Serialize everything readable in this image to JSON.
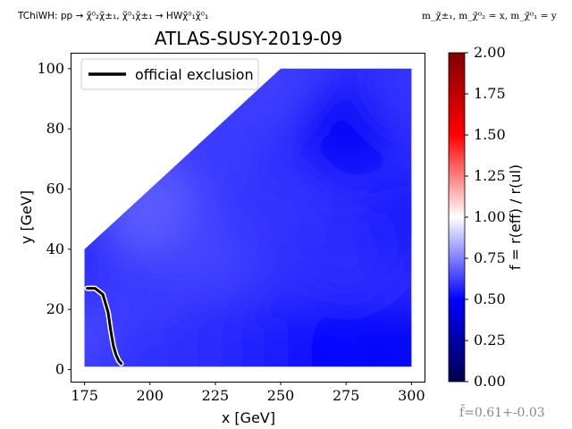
{
  "header": {
    "left_note": "TChiWH: pp → χ̃⁰₂χ̃±₁, χ̃⁰₁χ̃±₁ → HWχ̃⁰₁χ̃⁰₁",
    "right_note": "m_χ̃±₁, m_χ̃⁰₂ = x, m_χ̃⁰₁ = y"
  },
  "footer": {
    "mean_ratio": "f̄=0.61+-0.03"
  },
  "colors": {
    "exclusion_line": "#000000",
    "exclusion_halo": "#ffffff",
    "cmap_low": "#00004d",
    "cmap_mid_low": "#0000ff",
    "cmap_mid": "#ffffff",
    "cmap_mid_high": "#ff0000",
    "cmap_high": "#800000"
  },
  "chart_data": {
    "type": "heatmap",
    "title": "ATLAS-SUSY-2019-09",
    "xlabel": "x [GeV]",
    "ylabel": "y [GeV]",
    "xlim": [
      170,
      305
    ],
    "ylim": [
      -4,
      105
    ],
    "xticks": [
      175,
      200,
      225,
      250,
      275,
      300
    ],
    "yticks": [
      0,
      20,
      40,
      60,
      80,
      100
    ],
    "region_vertices": [
      [
        175,
        1
      ],
      [
        175,
        40
      ],
      [
        250,
        100
      ],
      [
        300,
        100
      ],
      [
        300,
        1
      ]
    ],
    "heat_points": [
      {
        "x": 175,
        "y": 5,
        "f": 0.62
      },
      {
        "x": 175,
        "y": 20,
        "f": 0.65
      },
      {
        "x": 175,
        "y": 35,
        "f": 0.58
      },
      {
        "x": 200,
        "y": 5,
        "f": 0.6
      },
      {
        "x": 200,
        "y": 30,
        "f": 0.62
      },
      {
        "x": 200,
        "y": 55,
        "f": 0.7
      },
      {
        "x": 225,
        "y": 5,
        "f": 0.58
      },
      {
        "x": 225,
        "y": 40,
        "f": 0.64
      },
      {
        "x": 225,
        "y": 75,
        "f": 0.62
      },
      {
        "x": 250,
        "y": 5,
        "f": 0.55
      },
      {
        "x": 250,
        "y": 50,
        "f": 0.6
      },
      {
        "x": 250,
        "y": 95,
        "f": 0.63
      },
      {
        "x": 275,
        "y": 5,
        "f": 0.5
      },
      {
        "x": 275,
        "y": 40,
        "f": 0.58
      },
      {
        "x": 275,
        "y": 80,
        "f": 0.48
      },
      {
        "x": 300,
        "y": 5,
        "f": 0.48
      },
      {
        "x": 300,
        "y": 50,
        "f": 0.55
      },
      {
        "x": 300,
        "y": 95,
        "f": 0.6
      }
    ],
    "series": [
      {
        "name": "official exclusion",
        "x": [
          176,
          179,
          182,
          184,
          185,
          186,
          187,
          188,
          189
        ],
        "y": [
          27,
          27,
          25,
          19,
          13,
          8,
          5,
          3,
          2
        ]
      }
    ],
    "legend": {
      "position": "top-left",
      "label": "official exclusion"
    },
    "colorbar": {
      "label": "f = r(eff) / r(ul)",
      "range": [
        0,
        2
      ],
      "ticks": [
        "0.00",
        "0.25",
        "0.50",
        "0.75",
        "1.00",
        "1.25",
        "1.50",
        "1.75",
        "2.00"
      ]
    },
    "grid": false
  }
}
